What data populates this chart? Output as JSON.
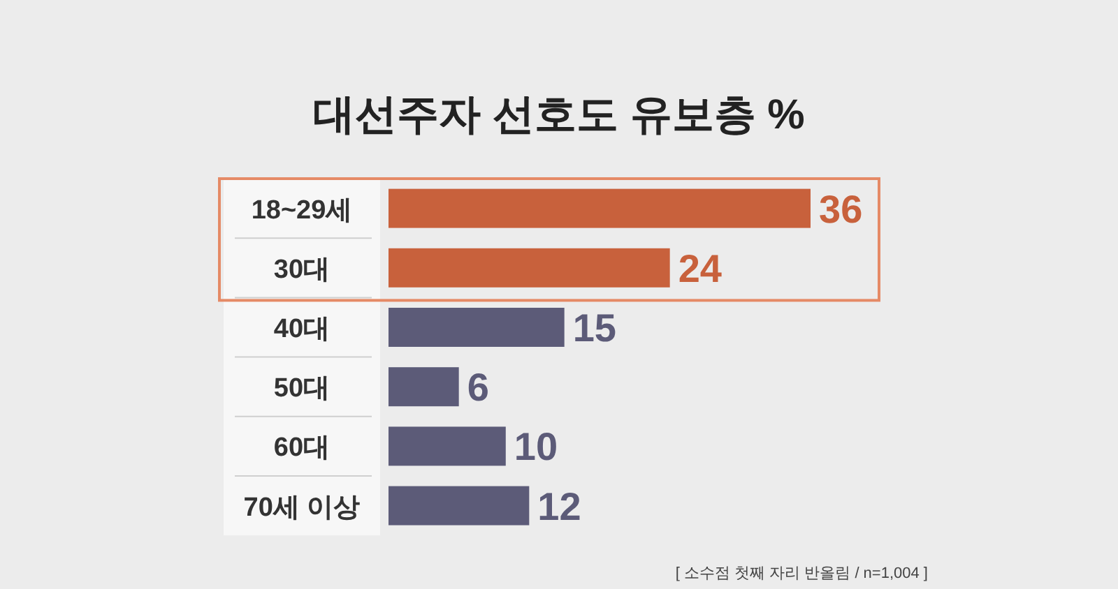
{
  "chart_data": {
    "type": "bar",
    "orientation": "horizontal",
    "title": "대선주자 선호도 유보층 %",
    "categories": [
      "18~29세",
      "30대",
      "40대",
      "50대",
      "60대",
      "70세 이상"
    ],
    "values": [
      36,
      24,
      15,
      6,
      10,
      12
    ],
    "colors": [
      "#c8613c",
      "#c8613c",
      "#5c5b78",
      "#5c5b78",
      "#5c5b78",
      "#5c5b78"
    ],
    "data_labels": true,
    "annotations": [
      "[ 소수점 첫째 자리 반올림 / n=1,004 ]"
    ]
  }
}
